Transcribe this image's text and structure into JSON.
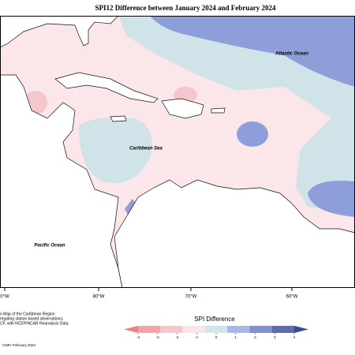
{
  "title": "SPI12 Difference between January 2024 and February 2024",
  "regions": {
    "atlantic": "Atlantic Ocean",
    "caribbean": "Caribbean Sea",
    "pacific": "Pacific Ocean"
  },
  "lon_labels": [
    "0°W",
    "80°W",
    "70°W",
    "60°W"
  ],
  "colorbar": {
    "title": "SPI Difference",
    "ticks": [
      -4,
      -3,
      -2,
      -1,
      0,
      1,
      2,
      3,
      4
    ],
    "colors": [
      "#f07e88",
      "#f4a3ab",
      "#f8c7cc",
      "#fce5e8",
      "#d2e6ea",
      "#a8b8e6",
      "#7f91cf",
      "#5c6cae",
      "#3e4a8e"
    ]
  },
  "notes": [
    "n Map of the Caribbean Region",
    "regating station based observations,",
    "CF, with NCEP/NCAR Reanalysis Data."
  ],
  "credit": "CIMH February 2024"
}
